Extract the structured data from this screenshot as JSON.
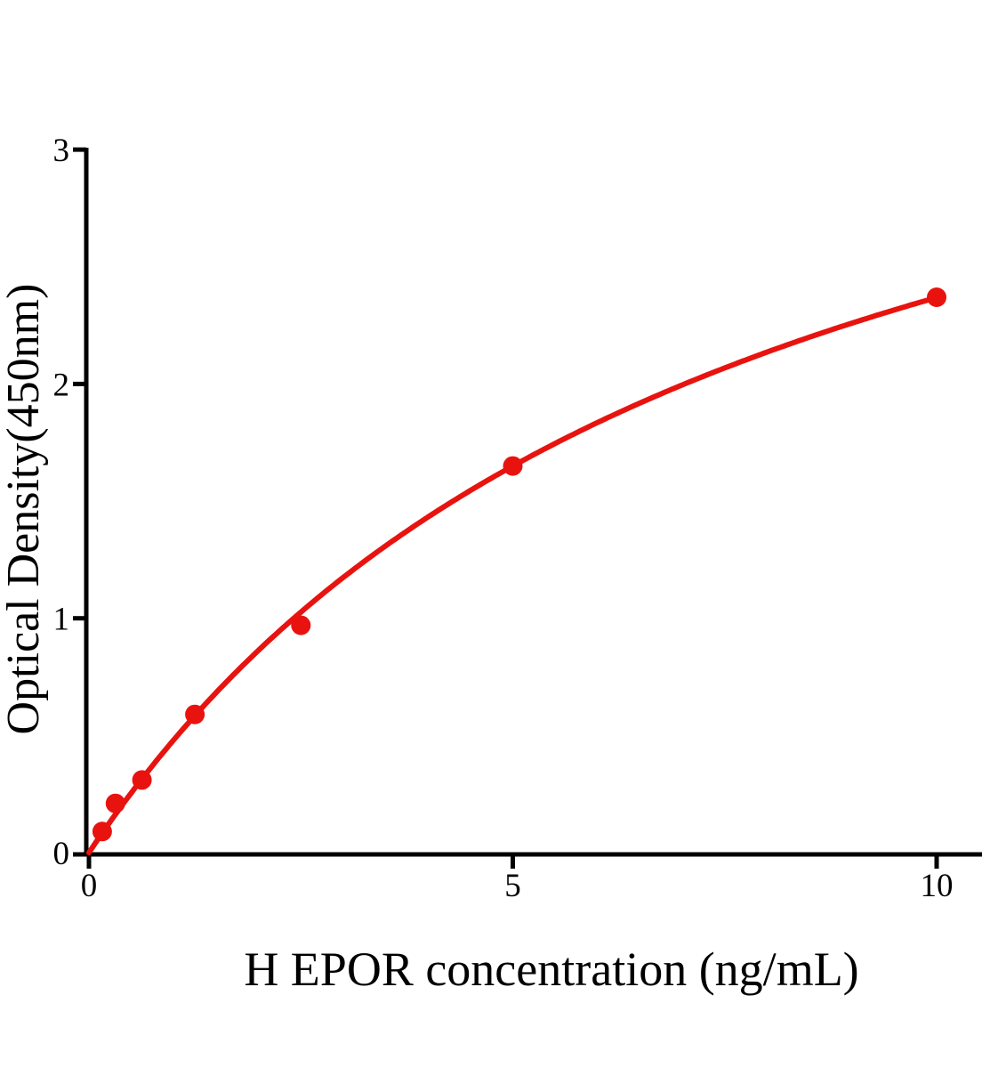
{
  "figure": {
    "background": "#ffffff",
    "title": ""
  },
  "chart_data": {
    "type": "scatter",
    "title": "",
    "xlabel": "H EPOR concentration (ng/mL)",
    "ylabel": "Optical Density(450nm)",
    "x": [
      0.156,
      0.313,
      0.625,
      1.25,
      2.5,
      5,
      10
    ],
    "y": [
      0.09,
      0.21,
      0.31,
      0.59,
      0.97,
      1.65,
      2.37
    ],
    "x_ticks": [
      0,
      5,
      10
    ],
    "y_ticks": [
      0,
      1,
      2,
      3
    ],
    "xlim": [
      0,
      10.55
    ],
    "ylim": [
      0,
      3
    ],
    "grid": false,
    "legend": "none",
    "marker_color": "#e8130f",
    "line_color": "#e8130f",
    "axis_color": "#000000",
    "trend_curve": {
      "model": "michaelis_menten",
      "vmax": 4.2,
      "km": 7.73,
      "x_range": [
        0,
        10
      ]
    }
  }
}
